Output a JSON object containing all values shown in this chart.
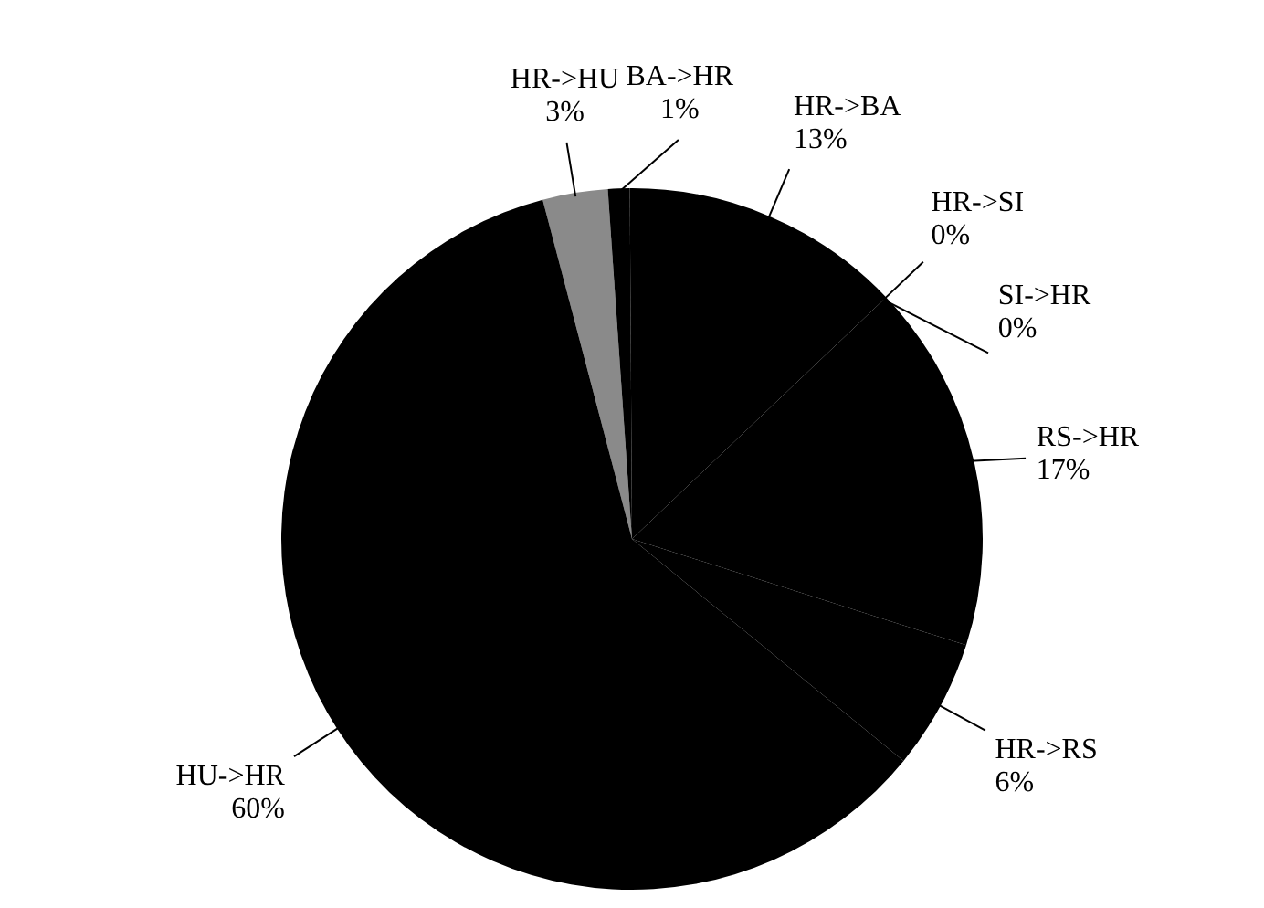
{
  "chart_data": {
    "type": "pie",
    "categories": [
      "HR->HU",
      "BA->HR",
      "HR->BA",
      "HR->SI",
      "SI->HR",
      "RS->HR",
      "HR->RS",
      "HU->HR"
    ],
    "values": [
      3,
      1,
      13,
      0,
      0,
      17,
      6,
      60
    ],
    "value_labels": [
      "3%",
      "1%",
      "13%",
      "0%",
      "0%",
      "17%",
      "6%",
      "60%"
    ],
    "colors": [
      "#8a8a8a",
      "#000000",
      "#000000",
      "#000000",
      "#000000",
      "#000000",
      "#000000",
      "#000000"
    ],
    "legend": false
  }
}
